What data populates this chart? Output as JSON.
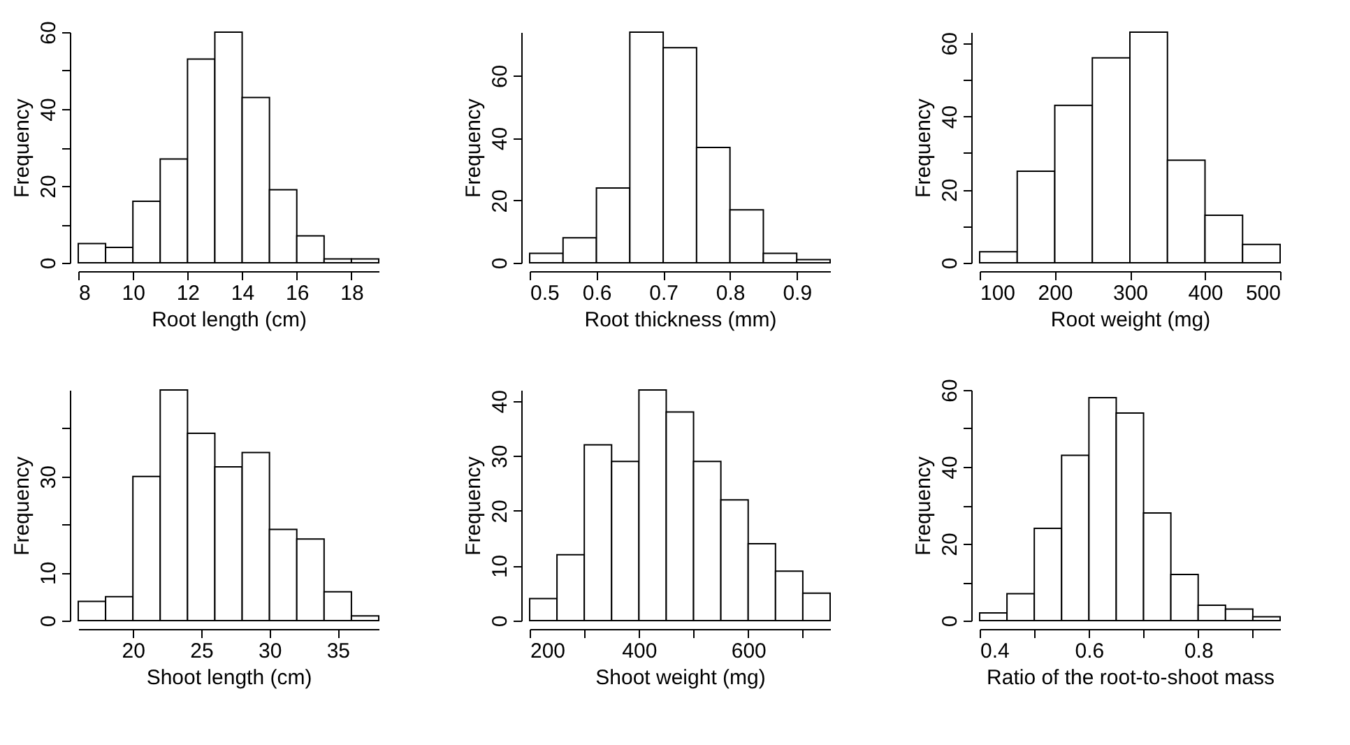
{
  "chart_data": [
    {
      "type": "histogram",
      "xlabel": "Root length (cm)",
      "ylabel": "Frequency",
      "bins": [
        8,
        9,
        10,
        11,
        12,
        13,
        14,
        15,
        16,
        17,
        18,
        19
      ],
      "values": [
        5,
        4,
        16,
        27,
        53,
        60,
        43,
        19,
        7,
        1,
        1
      ],
      "color": "#ffffff",
      "xlim": [
        8,
        19
      ],
      "xticks": [
        8,
        10,
        12,
        14,
        16,
        18
      ],
      "ylim": [
        0,
        60
      ],
      "yticks": [
        0,
        {
          "value": 10,
          "label": null
        },
        20,
        {
          "value": 30,
          "label": null
        },
        40,
        {
          "value": 50,
          "label": null
        },
        60
      ],
      "grid": false
    },
    {
      "type": "histogram",
      "xlabel": "Root thickness (mm)",
      "ylabel": "Frequency",
      "bins": [
        0.5,
        0.55,
        0.6,
        0.65,
        0.7,
        0.75,
        0.8,
        0.85,
        0.9,
        0.95
      ],
      "values": [
        3,
        8,
        24,
        74,
        69,
        37,
        17,
        3,
        1
      ],
      "color": "#ffffff",
      "xlim": [
        0.5,
        0.95
      ],
      "xticks": [
        0.5,
        0.6,
        0.7,
        0.8,
        0.9
      ],
      "ylim": [
        0,
        74
      ],
      "yticks": [
        0,
        20,
        40,
        60
      ],
      "grid": false
    },
    {
      "type": "histogram",
      "xlabel": "Root weight (mg)",
      "ylabel": "Frequency",
      "bins": [
        100,
        150,
        200,
        250,
        300,
        350,
        400,
        450,
        500
      ],
      "values": [
        3,
        25,
        43,
        56,
        63,
        28,
        13,
        5
      ],
      "color": "#ffffff",
      "xlim": [
        100,
        500
      ],
      "xticks": [
        100,
        200,
        300,
        400,
        500
      ],
      "ylim": [
        0,
        63
      ],
      "yticks": [
        0,
        {
          "value": 10,
          "label": null
        },
        20,
        {
          "value": 30,
          "label": null
        },
        40,
        {
          "value": 50,
          "label": null
        },
        60
      ],
      "grid": false
    },
    {
      "type": "histogram",
      "xlabel": "Shoot length (cm)",
      "ylabel": "Frequency",
      "bins": [
        16,
        18,
        20,
        22,
        24,
        26,
        28,
        30,
        32,
        34,
        36,
        38
      ],
      "values": [
        4,
        5,
        30,
        48,
        39,
        32,
        35,
        19,
        17,
        6,
        1
      ],
      "color": "#ffffff",
      "xlim": [
        16,
        38
      ],
      "xticks": [
        20,
        25,
        30,
        35
      ],
      "ylim": [
        0,
        48
      ],
      "yticks": [
        0,
        10,
        {
          "value": 20,
          "label": null
        },
        30,
        {
          "value": 40,
          "label": null
        }
      ],
      "grid": false
    },
    {
      "type": "histogram",
      "xlabel": "Shoot weight (mg)",
      "ylabel": "Frequency",
      "bins": [
        200,
        250,
        300,
        350,
        400,
        450,
        500,
        550,
        600,
        650,
        700,
        750
      ],
      "values": [
        4,
        12,
        32,
        29,
        42,
        38,
        29,
        22,
        14,
        9,
        5
      ],
      "color": "#ffffff",
      "xlim": [
        200,
        750
      ],
      "xticks": [
        200,
        {
          "value": 300,
          "label": null
        },
        400,
        {
          "value": 500,
          "label": null
        },
        600,
        {
          "value": 700,
          "label": null
        }
      ],
      "ylim": [
        0,
        42
      ],
      "yticks": [
        0,
        10,
        20,
        30,
        40
      ],
      "grid": false
    },
    {
      "type": "histogram",
      "xlabel": "Ratio of the root-to-shoot mass",
      "ylabel": "Frequency",
      "bins": [
        0.4,
        0.45,
        0.5,
        0.55,
        0.6,
        0.65,
        0.7,
        0.75,
        0.8,
        0.85,
        0.9,
        0.95
      ],
      "values": [
        2,
        7,
        24,
        43,
        58,
        54,
        28,
        12,
        4,
        3,
        1
      ],
      "color": "#ffffff",
      "xlim": [
        0.4,
        0.95
      ],
      "xticks": [
        0.4,
        {
          "value": 0.5,
          "label": null
        },
        0.6,
        {
          "value": 0.7,
          "label": null
        },
        0.8,
        {
          "value": 0.9,
          "label": null
        }
      ],
      "ylim": [
        0,
        60
      ],
      "yticks": [
        0,
        {
          "value": 10,
          "label": null
        },
        20,
        {
          "value": 30,
          "label": null
        },
        40,
        {
          "value": 50,
          "label": null
        },
        60
      ],
      "grid": false
    }
  ]
}
